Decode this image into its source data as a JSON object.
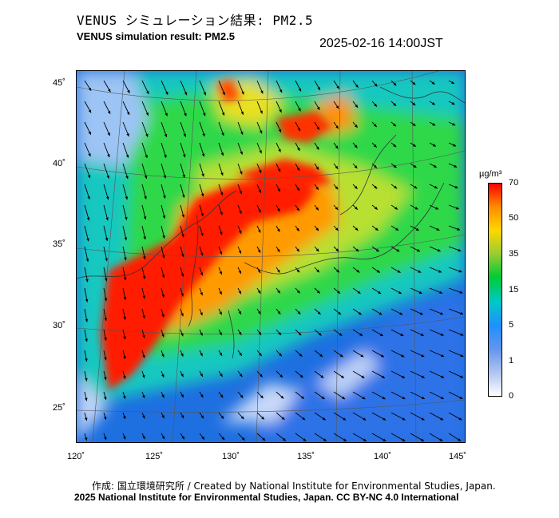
{
  "title_jp": "VENUS シミュレーション結果: PM2.5",
  "title_en": "VENUS simulation result: PM2.5",
  "timestamp": "2025-02-16 14:00JST",
  "axes": {
    "lat_labels": [
      "45˚",
      "40˚",
      "35˚",
      "30˚",
      "25˚"
    ],
    "lon_labels": [
      "120˚",
      "125˚",
      "130˚",
      "135˚",
      "140˚",
      "145˚"
    ]
  },
  "colorbar": {
    "unit": "µg/m³",
    "labels": [
      "70",
      "50",
      "35",
      "15",
      "5",
      "1",
      "0"
    ],
    "colors": [
      "#ff0000",
      "#ff8c00",
      "#ffd700",
      "#9acd32",
      "#00cc33",
      "#00c8c8",
      "#1e90ff",
      "#6495ed",
      "#b0c4f0",
      "#ffffff"
    ]
  },
  "credit": "作成: 国立環境研究所 / Created by National Institute for Environmental Studies, Japan.",
  "license": "2025 National Institute for Environmental Studies, Japan. CC BY-NC 4.0 International"
}
